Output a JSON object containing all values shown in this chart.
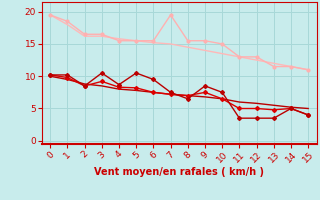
{
  "x": [
    0,
    1,
    2,
    3,
    4,
    5,
    6,
    7,
    8,
    9,
    10,
    11,
    12,
    13,
    14,
    15
  ],
  "line1_y": [
    19.5,
    18.5,
    16.5,
    16.5,
    15.5,
    15.5,
    15.5,
    19.5,
    15.5,
    15.5,
    15.0,
    13.0,
    13.0,
    11.5,
    11.5,
    11.0
  ],
  "line2_y": [
    19.5,
    18.0,
    16.2,
    16.2,
    15.8,
    15.5,
    15.2,
    15.0,
    14.5,
    14.0,
    13.5,
    13.0,
    12.5,
    12.0,
    11.5,
    11.0
  ],
  "line3_y": [
    10.2,
    10.2,
    8.5,
    10.5,
    8.7,
    10.5,
    9.5,
    7.5,
    6.5,
    8.5,
    7.5,
    3.5,
    3.5,
    3.5,
    5.0,
    4.0
  ],
  "line4_y": [
    10.2,
    9.8,
    8.5,
    9.2,
    8.3,
    8.2,
    7.5,
    7.2,
    7.0,
    7.5,
    6.5,
    5.0,
    5.0,
    4.8,
    5.0,
    4.0
  ],
  "line5_y": [
    10.0,
    9.5,
    8.8,
    8.5,
    8.0,
    7.8,
    7.5,
    7.2,
    7.0,
    6.8,
    6.5,
    6.0,
    5.8,
    5.5,
    5.2,
    5.0
  ],
  "color_pink_light": "#FFB0B0",
  "color_pink_trend": "#FFB8B8",
  "color_red_dark": "#BB0000",
  "color_red": "#DD0000",
  "xlabel": "Vent moyen/en rafales ( km/h )",
  "xlim": [
    -0.5,
    15.5
  ],
  "ylim": [
    -0.5,
    21.5
  ],
  "yticks": [
    0,
    5,
    10,
    15,
    20
  ],
  "xticks": [
    0,
    1,
    2,
    3,
    4,
    5,
    6,
    7,
    8,
    9,
    10,
    11,
    12,
    13,
    14,
    15
  ],
  "bg_color": "#C8ECEC",
  "grid_color": "#A8D8D8",
  "axis_color": "#CC0000",
  "font_color": "#CC0000"
}
